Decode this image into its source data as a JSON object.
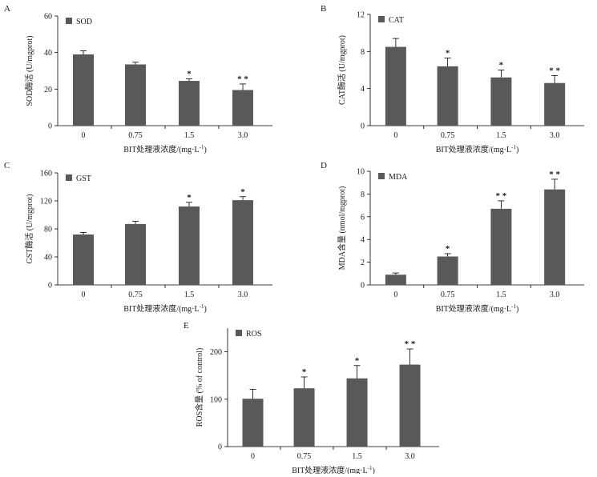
{
  "figure": {
    "background": "#ffffff",
    "bar_color": "#595959",
    "axis_color": "#000000"
  },
  "chart_data": [
    {
      "panel": "A",
      "type": "bar",
      "legend": "SOD",
      "categories": [
        "0",
        "0.75",
        "1.5",
        "3.0"
      ],
      "values": [
        39,
        33.5,
        24.5,
        19.5
      ],
      "errors": [
        2,
        1.2,
        1.2,
        3.3
      ],
      "significance": [
        "",
        "",
        "*",
        "* *"
      ],
      "ylim": [
        0,
        60
      ],
      "yticks": [
        0,
        20,
        40,
        60
      ],
      "ylabel": "SOD酶活 (U/mgprot)",
      "xlabel_main": "BIT处理液浓度/(mg·L",
      "xlabel_sup": "-1",
      "xlabel_end": ")"
    },
    {
      "panel": "B",
      "type": "bar",
      "legend": "CAT",
      "categories": [
        "0",
        "0.75",
        "1.5",
        "3.0"
      ],
      "values": [
        8.5,
        6.4,
        5.2,
        4.6
      ],
      "errors": [
        0.9,
        0.9,
        0.8,
        0.8
      ],
      "significance": [
        "",
        "*",
        "*",
        "* *"
      ],
      "ylim": [
        0,
        12
      ],
      "yticks": [
        0,
        4,
        8,
        12
      ],
      "ylabel": "CAT酶活 (U/mgprot)",
      "xlabel_main": "BIT处理液浓度/(mg·L",
      "xlabel_sup": "-1",
      "xlabel_end": ")"
    },
    {
      "panel": "C",
      "type": "bar",
      "legend": "GST",
      "categories": [
        "0",
        "0.75",
        "1.5",
        "3.0"
      ],
      "values": [
        72,
        87,
        112,
        121
      ],
      "errors": [
        3,
        4,
        6,
        5
      ],
      "significance": [
        "",
        "",
        "*",
        "*"
      ],
      "ylim": [
        0,
        160
      ],
      "yticks": [
        0,
        40,
        80,
        120,
        160
      ],
      "ylabel": "GST酶活 (U/mgprot)",
      "xlabel_main": "BIT处理液浓度/(mg·L",
      "xlabel_sup": "-1",
      "xlabel_end": ")"
    },
    {
      "panel": "D",
      "type": "bar",
      "legend": "MDA",
      "categories": [
        "0",
        "0.75",
        "1.5",
        "3.0"
      ],
      "values": [
        0.9,
        2.5,
        6.7,
        8.4
      ],
      "errors": [
        0.15,
        0.25,
        0.7,
        0.9
      ],
      "significance": [
        "",
        "*",
        "* *",
        "* *"
      ],
      "ylim": [
        0,
        10
      ],
      "yticks": [
        0,
        2,
        4,
        6,
        8,
        10
      ],
      "ylabel": "MDA含量 (nmol/mgprot)",
      "xlabel_main": "BIT处理液浓度/(mg·L",
      "xlabel_sup": "-1",
      "xlabel_end": ")"
    },
    {
      "panel": "E",
      "type": "bar",
      "legend": "ROS",
      "categories": [
        "0",
        "0.75",
        "1.5",
        "3.0"
      ],
      "values": [
        101,
        123,
        144,
        173
      ],
      "errors": [
        20,
        24,
        27,
        33
      ],
      "significance": [
        "",
        "*",
        "*",
        "* *"
      ],
      "ylim": [
        0,
        250
      ],
      "yticks": [
        0,
        100,
        200
      ],
      "ylabel": "ROS含量 (% of control)",
      "xlabel_main": "BIT处理液浓度/(mg·L",
      "xlabel_sup": "-1",
      "xlabel_end": ")"
    }
  ]
}
